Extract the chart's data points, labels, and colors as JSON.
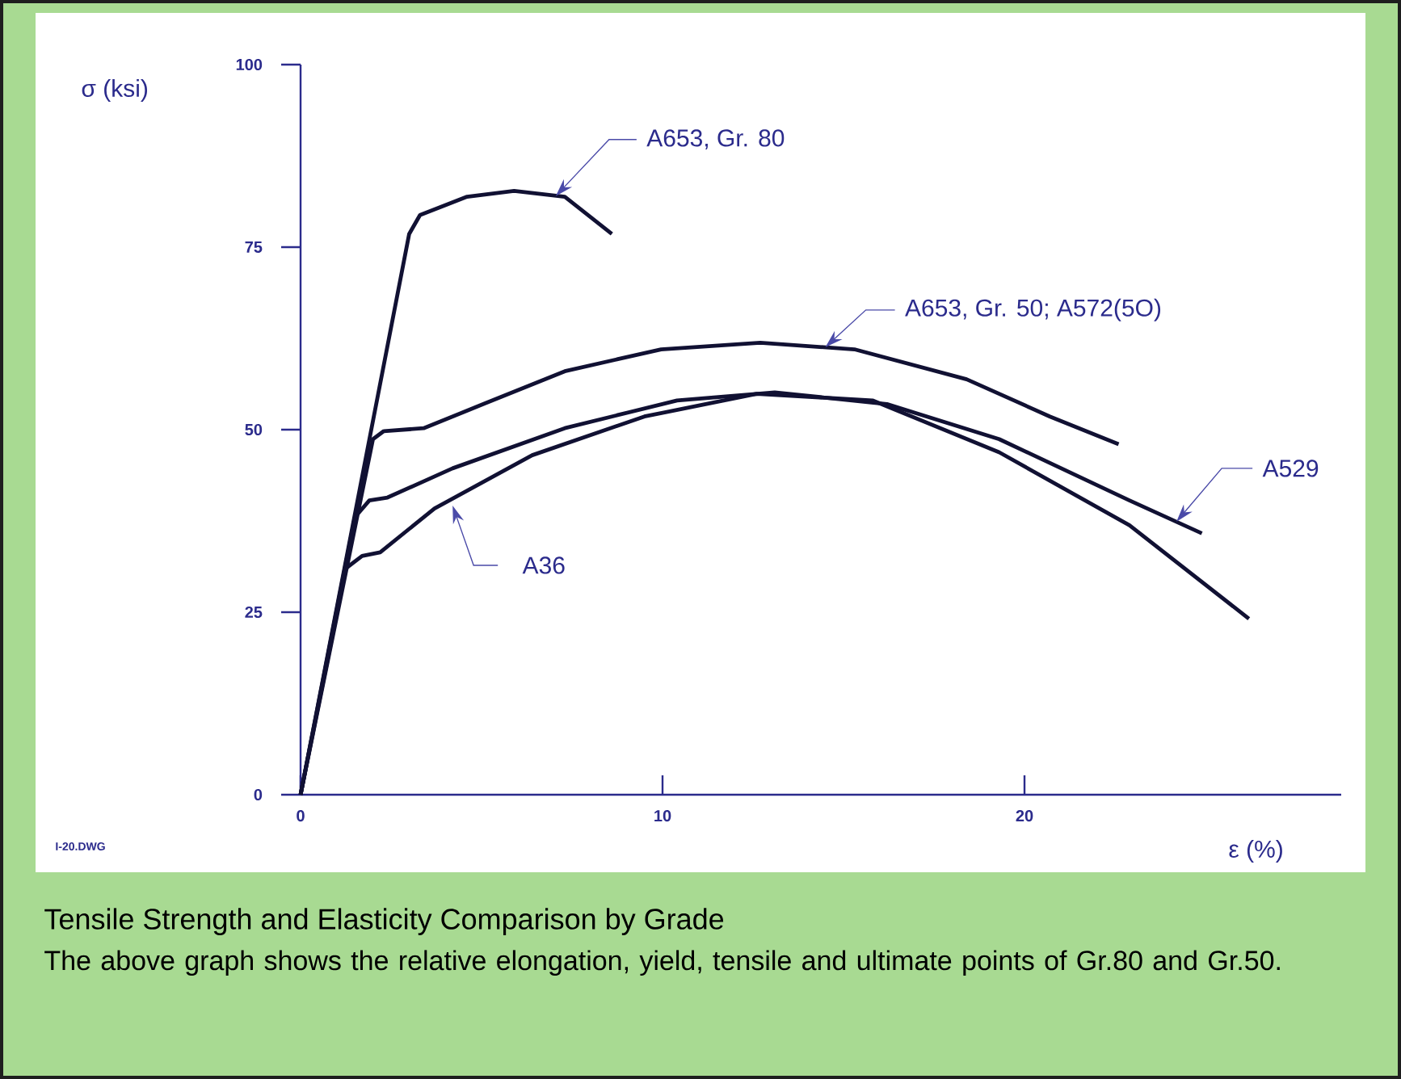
{
  "chart_data": {
    "type": "line",
    "title": "Tensile Strength and Elasticity Comparison by Grade",
    "subtitle": "The above graph shows the relative elongation, yield, tensile and ultimate points of Gr.80 and Gr.50.",
    "xlabel": "ε   (%)",
    "ylabel": "σ  (ksi)",
    "xlim": [
      0,
      28.75
    ],
    "ylim": [
      0,
      100
    ],
    "xticks": [
      0,
      10,
      20
    ],
    "yticks": [
      0,
      25,
      50,
      75,
      100
    ],
    "grid": false,
    "marker": "none",
    "line_style": "solid",
    "series": [
      {
        "color": "#111133",
        "x": [
          0,
          3.0,
          3.3,
          4.6,
          5.9,
          7.3,
          8.6
        ],
        "values": [
          0,
          76.8,
          79.4,
          81.9,
          82.7,
          81.9,
          76.8
        ]
      },
      {
        "color": "#111133",
        "x": [
          0,
          2.0,
          2.3,
          3.4,
          5.05,
          7.3,
          9.96,
          12.7,
          15.3,
          18.4,
          20.7,
          22.6
        ],
        "values": [
          0,
          48.7,
          49.8,
          50.2,
          53.5,
          58,
          61,
          61.9,
          61,
          56.9,
          51.8,
          48
        ]
      },
      {
        "color": "#111133",
        "x": [
          0,
          1.5,
          1.9,
          2.4,
          4.2,
          7.3,
          10.4,
          13.1,
          16.2,
          19.3,
          22.9,
          24.9
        ],
        "values": [
          0,
          38,
          40.3,
          40.7,
          44.7,
          50.2,
          54,
          55.1,
          53.5,
          48.7,
          40.3,
          35.8
        ]
      },
      {
        "color": "#111133",
        "x": [
          0,
          1.25,
          1.7,
          2.2,
          3.7,
          6.4,
          9.5,
          12.6,
          15.8,
          19.3,
          22.9,
          26.2
        ],
        "values": [
          0,
          31,
          32.7,
          33.2,
          39.2,
          46.5,
          51.8,
          54.9,
          54,
          46.9,
          36.9,
          24.1
        ]
      }
    ],
    "annotations": [
      {
        "text": "A653, Gr. 80",
        "x": 7.05,
        "y": 82
      },
      {
        "text": "A653, Gr. 50; A572(5O)",
        "x": 14.5,
        "y": 61.3
      },
      {
        "text": "A529",
        "x": 24.2,
        "y": 37.4
      },
      {
        "text": "A36",
        "x": 4.2,
        "y": 39.6
      },
      "I-20.DWG"
    ]
  }
}
